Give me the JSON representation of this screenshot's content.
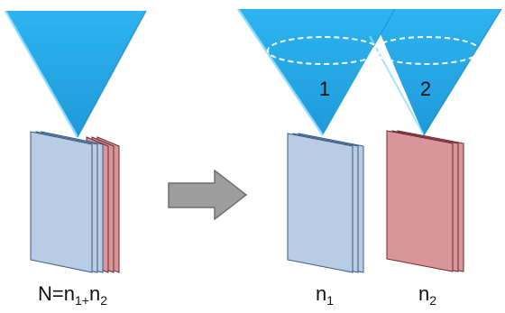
{
  "diagram": {
    "left_group": {
      "label": {
        "main": "N=n",
        "sub1": "1+",
        "mid": "n",
        "sub2": "2"
      }
    },
    "right_group": {
      "cone_1": {
        "number": "1"
      },
      "cone_2": {
        "number": "2"
      },
      "stack_1": {
        "label": {
          "main": "n",
          "sub": "1"
        }
      },
      "stack_2": {
        "label": {
          "main": "n",
          "sub": "2"
        }
      }
    },
    "colors": {
      "cone_fill": "#29a8e6",
      "cone_highlight": "#8fdcff",
      "blue_sheet_fill": "#b8cce4",
      "blue_sheet_stroke": "#3a5a86",
      "red_sheet_fill": "#d9959a",
      "red_sheet_stroke": "#6a2a2e",
      "arrow_fill": "#9e9e9e",
      "arrow_stroke": "#6f6f6f"
    }
  }
}
